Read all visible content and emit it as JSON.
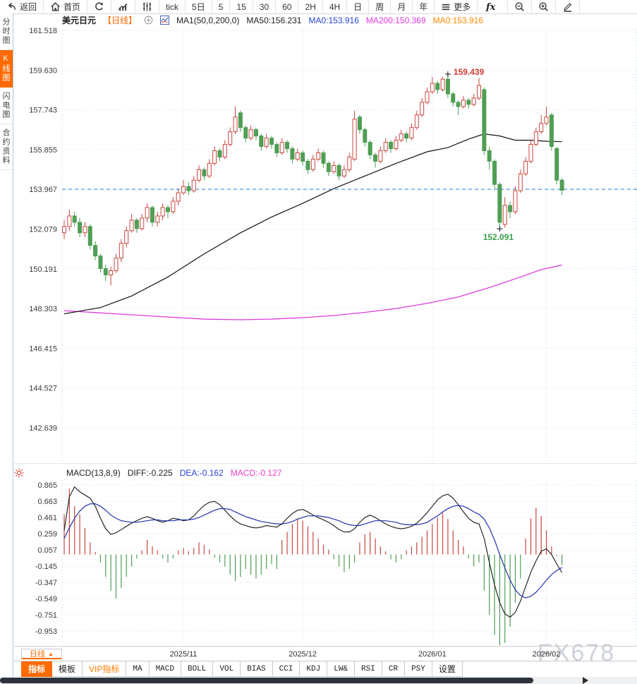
{
  "toolbar": {
    "items": [
      {
        "name": "back",
        "icon": "back-icon",
        "label": "返回"
      },
      {
        "name": "home",
        "icon": "home-icon",
        "label": "首页"
      },
      {
        "name": "refresh",
        "icon": "refresh-icon"
      },
      {
        "name": "chart-type-bars",
        "icon": "bar-chart-icon"
      },
      {
        "name": "chart-type-candles",
        "icon": "candlestick-icon"
      },
      {
        "name": "interval-tick",
        "label": "tick"
      },
      {
        "name": "interval-5d",
        "label": "5日"
      },
      {
        "name": "interval-5",
        "label": "5"
      },
      {
        "name": "interval-15",
        "label": "15"
      },
      {
        "name": "interval-30",
        "label": "30"
      },
      {
        "name": "interval-60",
        "label": "60"
      },
      {
        "name": "interval-2h",
        "label": "2H"
      },
      {
        "name": "interval-4h",
        "label": "4H"
      },
      {
        "name": "interval-day",
        "label": "日"
      },
      {
        "name": "interval-week",
        "label": "周"
      },
      {
        "name": "interval-month",
        "label": "月"
      },
      {
        "name": "interval-year",
        "label": "年"
      },
      {
        "name": "more",
        "icon": "menu-icon",
        "label": "更多"
      },
      {
        "name": "fx-functions",
        "icon": "fx-icon"
      },
      {
        "name": "zoom-out",
        "icon": "zoom-out-icon"
      },
      {
        "name": "zoom-in",
        "icon": "zoom-in-icon"
      },
      {
        "name": "draw",
        "icon": "pencil-icon"
      }
    ]
  },
  "sidebar": {
    "items": [
      {
        "name": "time-share-chart",
        "label": "分时图"
      },
      {
        "name": "kline-chart",
        "label": "K线图",
        "active": true
      },
      {
        "name": "lightning-chart",
        "label": "闪电图"
      },
      {
        "name": "contract-info",
        "label": "合约资料"
      }
    ]
  },
  "chart_header": {
    "symbol": "美元日元",
    "period": "【日线】",
    "ma_settings": "MA1(50,0,200,0)",
    "ma50": "MA50:156.231",
    "ma0_blue": "MA0:153.916",
    "ma200": "MA200:150.369",
    "ma0_orange": "MA0:153.916"
  },
  "macd_header": {
    "title": "MACD(13,8,9)",
    "diff": "DIFF:-0.225",
    "dea": "DEA:-0.162",
    "macd": "MACD:-0.127"
  },
  "x_axis": {
    "period_button": "日线"
  },
  "tabs": {
    "items": [
      {
        "name": "indicators",
        "label": "指标",
        "active": true
      },
      {
        "name": "templates",
        "label": "模板"
      },
      {
        "name": "vip-indicators",
        "label": "VIP指标",
        "vip": true
      },
      {
        "name": "ma",
        "label": "MA"
      },
      {
        "name": "macd",
        "label": "MACD"
      },
      {
        "name": "boll",
        "label": "BOLL"
      },
      {
        "name": "vol",
        "label": "VOL"
      },
      {
        "name": "bias",
        "label": "BIAS"
      },
      {
        "name": "cci",
        "label": "CCI"
      },
      {
        "name": "kdj",
        "label": "KDJ"
      },
      {
        "name": "lwr",
        "label": "LW&"
      },
      {
        "name": "rsi",
        "label": "RSI"
      },
      {
        "name": "cr",
        "label": "CR"
      },
      {
        "name": "psy",
        "label": "PSY"
      },
      {
        "name": "settings",
        "label": "设置"
      }
    ]
  },
  "watermark": "FX678",
  "chart_data": {
    "type": "candlestick",
    "title": "美元日元 日线 (USD/JPY daily)",
    "y_axis": {
      "labels": [
        "161.518",
        "159.630",
        "157.743",
        "155.855",
        "153.967",
        "152.079",
        "150.191",
        "148.303",
        "146.415",
        "144.527",
        "142.639"
      ],
      "max": 161.518,
      "min": 142.639
    },
    "current_price": 153.967,
    "high_annotation": {
      "value": "159.439",
      "index": 74
    },
    "low_annotation": {
      "value": "152.091",
      "index": 84
    },
    "months": {
      "labels": [
        "2025/11",
        "2025/12",
        "2026/01",
        "2026/02"
      ],
      "indices": [
        23,
        46,
        71,
        93
      ]
    },
    "colors": {
      "up": "#c8463e",
      "down": "#4f9e54",
      "ma50": "#151515",
      "ma200": "#de3ade",
      "diff": "#151515",
      "dea": "#2233aa",
      "current": "#1e7ed8",
      "high_label": "#cf3a34",
      "low_label": "#3f9e4d"
    },
    "candles": [
      [
        151.9,
        152.5,
        151.6,
        152.2
      ],
      [
        152.2,
        153.0,
        152.0,
        152.7
      ],
      [
        152.7,
        152.9,
        152.2,
        152.4
      ],
      [
        152.4,
        152.6,
        151.7,
        151.9
      ],
      [
        151.9,
        152.4,
        151.7,
        152.2
      ],
      [
        152.2,
        152.3,
        151.1,
        151.3
      ],
      [
        151.3,
        151.5,
        150.6,
        150.8
      ],
      [
        150.8,
        150.9,
        150.0,
        150.2
      ],
      [
        150.2,
        150.4,
        149.6,
        149.9
      ],
      [
        149.9,
        150.3,
        149.4,
        150.1
      ],
      [
        150.1,
        150.9,
        150.0,
        150.7
      ],
      [
        150.7,
        151.6,
        150.5,
        151.4
      ],
      [
        151.4,
        152.2,
        151.2,
        152.0
      ],
      [
        152.0,
        152.8,
        151.9,
        152.5
      ],
      [
        152.5,
        152.6,
        151.9,
        152.1
      ],
      [
        152.1,
        152.8,
        152.0,
        152.6
      ],
      [
        152.6,
        153.3,
        152.4,
        153.1
      ],
      [
        153.1,
        153.2,
        152.2,
        152.4
      ],
      [
        152.4,
        152.9,
        152.2,
        152.7
      ],
      [
        152.7,
        153.3,
        152.5,
        153.1
      ],
      [
        153.1,
        153.2,
        152.6,
        152.9
      ],
      [
        152.9,
        153.6,
        152.8,
        153.4
      ],
      [
        153.4,
        154.0,
        153.2,
        153.8
      ],
      [
        153.8,
        154.4,
        153.7,
        154.1
      ],
      [
        154.1,
        154.3,
        153.7,
        153.9
      ],
      [
        153.9,
        154.6,
        153.8,
        154.4
      ],
      [
        154.4,
        155.1,
        154.3,
        154.9
      ],
      [
        154.9,
        155.0,
        154.4,
        154.6
      ],
      [
        154.6,
        155.4,
        154.5,
        155.2
      ],
      [
        155.2,
        156.0,
        155.1,
        155.8
      ],
      [
        155.8,
        155.9,
        155.3,
        155.5
      ],
      [
        155.5,
        156.3,
        155.4,
        156.1
      ],
      [
        156.1,
        156.9,
        156.0,
        156.7
      ],
      [
        156.7,
        157.9,
        156.6,
        157.4
      ],
      [
        157.6,
        157.7,
        156.7,
        156.9
      ],
      [
        156.9,
        157.0,
        156.2,
        156.4
      ],
      [
        156.4,
        157.0,
        156.3,
        156.8
      ],
      [
        156.8,
        156.9,
        156.3,
        156.5
      ],
      [
        156.5,
        156.6,
        155.8,
        156.0
      ],
      [
        156.0,
        156.6,
        155.9,
        156.4
      ],
      [
        156.4,
        156.5,
        155.9,
        156.1
      ],
      [
        156.1,
        156.2,
        155.5,
        155.7
      ],
      [
        155.7,
        156.4,
        155.6,
        156.2
      ],
      [
        156.2,
        156.3,
        155.7,
        155.9
      ],
      [
        155.9,
        156.0,
        155.2,
        155.4
      ],
      [
        155.4,
        155.9,
        155.3,
        155.7
      ],
      [
        155.7,
        155.8,
        155.1,
        155.3
      ],
      [
        155.3,
        155.4,
        154.7,
        154.9
      ],
      [
        154.9,
        155.6,
        154.8,
        155.4
      ],
      [
        155.4,
        155.9,
        155.3,
        155.7
      ],
      [
        155.7,
        155.8,
        155.0,
        155.2
      ],
      [
        155.2,
        155.3,
        154.6,
        154.8
      ],
      [
        154.8,
        155.3,
        154.7,
        155.1
      ],
      [
        155.1,
        155.2,
        154.4,
        154.6
      ],
      [
        154.6,
        155.1,
        154.5,
        154.9
      ],
      [
        154.9,
        155.7,
        154.8,
        155.5
      ],
      [
        155.4,
        157.7,
        155.3,
        157.3
      ],
      [
        157.4,
        157.5,
        156.6,
        156.8
      ],
      [
        156.8,
        156.9,
        156.0,
        156.2
      ],
      [
        156.2,
        156.3,
        155.4,
        155.6
      ],
      [
        155.6,
        155.7,
        155.0,
        155.3
      ],
      [
        155.3,
        156.0,
        155.2,
        155.8
      ],
      [
        155.8,
        156.4,
        155.7,
        156.2
      ],
      [
        156.2,
        156.3,
        155.7,
        155.9
      ],
      [
        155.9,
        156.5,
        155.8,
        156.3
      ],
      [
        156.3,
        156.8,
        156.2,
        156.6
      ],
      [
        156.6,
        156.7,
        156.2,
        156.4
      ],
      [
        156.4,
        157.1,
        156.3,
        156.9
      ],
      [
        156.9,
        157.7,
        156.8,
        157.5
      ],
      [
        157.5,
        158.3,
        157.4,
        158.1
      ],
      [
        158.1,
        158.8,
        158.0,
        158.6
      ],
      [
        158.6,
        159.3,
        158.5,
        159.0
      ],
      [
        159.0,
        159.1,
        158.5,
        158.7
      ],
      [
        158.7,
        159.3,
        158.6,
        159.2
      ],
      [
        159.2,
        159.439,
        158.3,
        158.5
      ],
      [
        158.5,
        158.6,
        157.9,
        158.1
      ],
      [
        158.1,
        158.2,
        157.5,
        157.9
      ],
      [
        157.9,
        158.4,
        157.8,
        158.2
      ],
      [
        158.2,
        158.3,
        157.8,
        158.0
      ],
      [
        158.0,
        158.5,
        157.9,
        158.3
      ],
      [
        158.3,
        159.25,
        158.2,
        158.9
      ],
      [
        158.7,
        158.8,
        155.6,
        155.8
      ],
      [
        155.8,
        156.0,
        154.9,
        155.3
      ],
      [
        155.3,
        155.4,
        154.0,
        154.2
      ],
      [
        154.2,
        154.3,
        152.091,
        152.4
      ],
      [
        152.3,
        153.6,
        152.15,
        153.2
      ],
      [
        153.2,
        153.4,
        152.6,
        152.9
      ],
      [
        152.9,
        154.1,
        152.8,
        153.9
      ],
      [
        153.9,
        154.9,
        153.8,
        154.7
      ],
      [
        154.7,
        155.5,
        154.6,
        155.3
      ],
      [
        155.3,
        156.3,
        155.2,
        156.1
      ],
      [
        156.1,
        156.9,
        156.0,
        156.7
      ],
      [
        156.7,
        157.5,
        156.6,
        157.1
      ],
      [
        157.1,
        157.9,
        157.0,
        157.4
      ],
      [
        157.5,
        157.6,
        155.8,
        156.0
      ],
      [
        155.9,
        156.0,
        154.2,
        154.4
      ],
      [
        154.4,
        154.5,
        153.7,
        153.92
      ]
    ],
    "ma50": [
      [
        0,
        148.05
      ],
      [
        7,
        148.35
      ],
      [
        13,
        148.9
      ],
      [
        20,
        149.8
      ],
      [
        27,
        150.9
      ],
      [
        34,
        151.9
      ],
      [
        40,
        152.65
      ],
      [
        46,
        153.3
      ],
      [
        52,
        154.0
      ],
      [
        58,
        154.6
      ],
      [
        64,
        155.2
      ],
      [
        70,
        155.75
      ],
      [
        74,
        155.95
      ],
      [
        78,
        156.35
      ],
      [
        81,
        156.6
      ],
      [
        84,
        156.5
      ],
      [
        87,
        156.3
      ],
      [
        90,
        156.3
      ],
      [
        93,
        156.25
      ],
      [
        96,
        156.23
      ]
    ],
    "ma200": [
      [
        0,
        148.2
      ],
      [
        10,
        148.05
      ],
      [
        20,
        147.9
      ],
      [
        27,
        147.8
      ],
      [
        34,
        147.77
      ],
      [
        40,
        147.8
      ],
      [
        46,
        147.87
      ],
      [
        52,
        147.97
      ],
      [
        58,
        148.12
      ],
      [
        64,
        148.3
      ],
      [
        70,
        148.55
      ],
      [
        76,
        148.85
      ],
      [
        82,
        149.3
      ],
      [
        88,
        149.8
      ],
      [
        92,
        150.15
      ],
      [
        96,
        150.37
      ]
    ],
    "macd": {
      "params": "(13,8,9)",
      "y_labels": [
        "0.865",
        "0.663",
        "0.461",
        "0.259",
        "0.057",
        "-0.145",
        "-0.347",
        "-0.549",
        "-0.751",
        "-0.953"
      ],
      "diff": [
        0.3,
        0.72,
        0.84,
        0.78,
        0.74,
        0.7,
        0.6,
        0.45,
        0.32,
        0.25,
        0.27,
        0.31,
        0.35,
        0.39,
        0.42,
        0.45,
        0.47,
        0.45,
        0.42,
        0.4,
        0.42,
        0.45,
        0.44,
        0.42,
        0.43,
        0.48,
        0.55,
        0.61,
        0.65,
        0.66,
        0.62,
        0.55,
        0.48,
        0.42,
        0.38,
        0.36,
        0.34,
        0.33,
        0.34,
        0.36,
        0.35,
        0.34,
        0.38,
        0.45,
        0.51,
        0.55,
        0.56,
        0.53,
        0.49,
        0.46,
        0.43,
        0.4,
        0.36,
        0.31,
        0.28,
        0.28,
        0.32,
        0.4,
        0.46,
        0.49,
        0.46,
        0.42,
        0.38,
        0.35,
        0.33,
        0.32,
        0.33,
        0.35,
        0.39,
        0.45,
        0.52,
        0.6,
        0.68,
        0.73,
        0.75,
        0.7,
        0.62,
        0.53,
        0.45,
        0.4,
        0.38,
        0.2,
        -0.1,
        -0.38,
        -0.6,
        -0.74,
        -0.78,
        -0.72,
        -0.58,
        -0.4,
        -0.22,
        -0.08,
        0.04,
        0.07,
        0.0,
        -0.12,
        -0.225
      ],
      "dea": [
        0.2,
        0.33,
        0.45,
        0.54,
        0.6,
        0.63,
        0.63,
        0.6,
        0.55,
        0.49,
        0.45,
        0.42,
        0.41,
        0.4,
        0.4,
        0.41,
        0.42,
        0.43,
        0.43,
        0.42,
        0.42,
        0.42,
        0.43,
        0.43,
        0.43,
        0.44,
        0.46,
        0.49,
        0.52,
        0.55,
        0.57,
        0.57,
        0.56,
        0.53,
        0.5,
        0.47,
        0.45,
        0.43,
        0.41,
        0.4,
        0.39,
        0.38,
        0.38,
        0.39,
        0.41,
        0.44,
        0.46,
        0.48,
        0.48,
        0.48,
        0.47,
        0.46,
        0.44,
        0.42,
        0.39,
        0.37,
        0.36,
        0.36,
        0.38,
        0.4,
        0.42,
        0.42,
        0.42,
        0.41,
        0.4,
        0.38,
        0.37,
        0.37,
        0.37,
        0.38,
        0.4,
        0.44,
        0.48,
        0.53,
        0.57,
        0.6,
        0.61,
        0.6,
        0.57,
        0.53,
        0.5,
        0.44,
        0.33,
        0.18,
        0.0,
        -0.17,
        -0.32,
        -0.44,
        -0.51,
        -0.54,
        -0.52,
        -0.47,
        -0.4,
        -0.32,
        -0.25,
        -0.2,
        -0.162
      ],
      "hist": [
        0.5,
        0.82,
        0.6,
        0.5,
        0.33,
        0.15,
        0.03,
        -0.1,
        -0.28,
        -0.45,
        -0.55,
        -0.42,
        -0.28,
        -0.15,
        -0.05,
        0.05,
        0.18,
        0.1,
        0.05,
        -0.05,
        -0.1,
        -0.05,
        0.05,
        0.08,
        0.04,
        0.08,
        0.15,
        0.12,
        0.06,
        -0.04,
        -0.1,
        -0.15,
        -0.25,
        -0.33,
        -0.28,
        -0.18,
        -0.25,
        -0.3,
        -0.25,
        -0.18,
        -0.12,
        -0.18,
        0.18,
        0.28,
        0.38,
        0.45,
        0.42,
        0.35,
        0.28,
        0.2,
        0.12,
        0.06,
        -0.06,
        -0.15,
        -0.22,
        -0.18,
        -0.1,
        0.15,
        0.25,
        0.28,
        0.2,
        0.1,
        0.04,
        -0.06,
        -0.1,
        -0.06,
        0.05,
        0.1,
        0.15,
        0.22,
        0.3,
        0.38,
        0.46,
        0.52,
        0.44,
        0.3,
        0.18,
        0.1,
        -0.05,
        -0.15,
        -0.1,
        -0.45,
        -0.75,
        -1.0,
        -1.15,
        -1.1,
        -0.9,
        -0.6,
        -0.3,
        0.2,
        0.45,
        0.58,
        0.48,
        0.3,
        0.1,
        -0.02,
        -0.127
      ]
    }
  }
}
